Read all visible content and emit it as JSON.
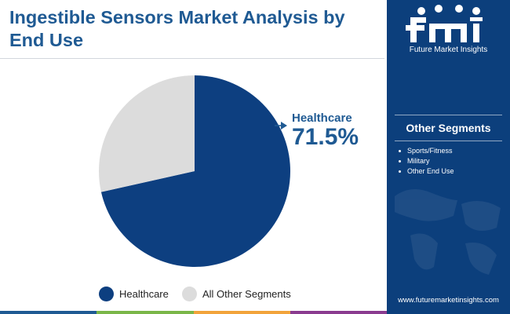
{
  "header": {
    "title": "Ingestible Sensors Market Analysis by End Use"
  },
  "chart_data": {
    "type": "pie",
    "categories": [
      "Healthcare",
      "All Other Segments"
    ],
    "values": [
      71.5,
      28.5
    ],
    "colors": [
      "#0d3f80",
      "#dcdcdc"
    ],
    "start_angle_deg": 0,
    "direction": "clockwise",
    "callout": {
      "label": "Healthcare",
      "value": "71.5%"
    },
    "legend": {
      "placement": "bottom",
      "entries": [
        {
          "label": "Healthcare",
          "color": "#0d3f80"
        },
        {
          "label": "All Other Segments",
          "color": "#dcdcdc"
        }
      ]
    }
  },
  "sidebar": {
    "brand_logo": "fmi",
    "brand_name": "Future Market Insights",
    "heading": "Other Segments",
    "items": [
      "Sports/Fitness",
      "Military",
      "Other End Use"
    ],
    "website": "www.futuremarketinsights.com",
    "background_color": "#0c3f7c"
  },
  "accent_colors": [
    "#1f5a93",
    "#7ab648",
    "#f2a33a",
    "#8a3b8f"
  ]
}
